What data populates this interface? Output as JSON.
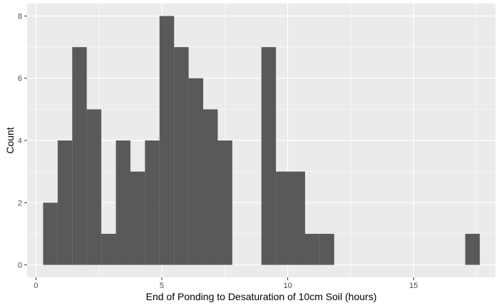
{
  "chart_data": {
    "type": "histogram",
    "xlabel": "End of Ponding to Desaturation of 10cm Soil (hours)",
    "ylabel": "Count",
    "xlim": [
      -0.35,
      18.25
    ],
    "ylim": [
      -0.4,
      8.4
    ],
    "x_ticks": [
      0,
      5,
      10,
      15
    ],
    "y_ticks": [
      0,
      2,
      4,
      6,
      8
    ],
    "bin_width": 0.578,
    "bins": [
      {
        "start": 0.286,
        "end": 0.864,
        "count": 2
      },
      {
        "start": 0.864,
        "end": 1.442,
        "count": 4
      },
      {
        "start": 1.442,
        "end": 2.02,
        "count": 7
      },
      {
        "start": 2.02,
        "end": 2.598,
        "count": 5
      },
      {
        "start": 2.598,
        "end": 3.176,
        "count": 1
      },
      {
        "start": 3.176,
        "end": 3.754,
        "count": 4
      },
      {
        "start": 3.754,
        "end": 4.332,
        "count": 3
      },
      {
        "start": 4.332,
        "end": 4.91,
        "count": 4
      },
      {
        "start": 4.91,
        "end": 5.488,
        "count": 8
      },
      {
        "start": 5.488,
        "end": 6.066,
        "count": 7
      },
      {
        "start": 6.066,
        "end": 6.644,
        "count": 6
      },
      {
        "start": 6.644,
        "end": 7.222,
        "count": 5
      },
      {
        "start": 7.222,
        "end": 7.8,
        "count": 4
      },
      {
        "start": 8.956,
        "end": 9.534,
        "count": 7
      },
      {
        "start": 9.534,
        "end": 10.112,
        "count": 3
      },
      {
        "start": 10.112,
        "end": 10.69,
        "count": 3
      },
      {
        "start": 10.69,
        "end": 11.268,
        "count": 1
      },
      {
        "start": 11.268,
        "end": 11.846,
        "count": 1
      },
      {
        "start": 17.05,
        "end": 17.628,
        "count": 1
      }
    ],
    "colors": {
      "panel_background": "#ebebeb",
      "grid_major": "#ffffff",
      "bar_fill": "#595959",
      "tick_mark": "#333333"
    },
    "grid": true
  }
}
